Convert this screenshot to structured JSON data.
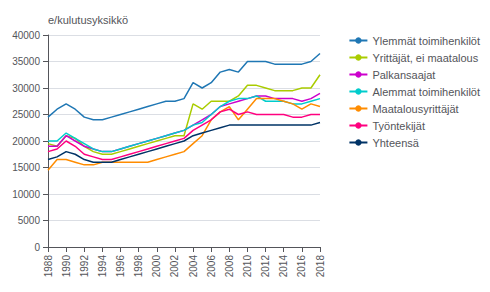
{
  "chart_data": {
    "type": "line",
    "ylabel": "e/kulutusyksikkö",
    "x": [
      1988,
      1989,
      1990,
      1991,
      1992,
      1993,
      1994,
      1995,
      1996,
      1997,
      1998,
      1999,
      2000,
      2001,
      2002,
      2003,
      2004,
      2005,
      2006,
      2007,
      2008,
      2009,
      2010,
      2011,
      2012,
      2013,
      2014,
      2015,
      2016,
      2017,
      2018
    ],
    "series": [
      {
        "name": "Ylemmät toimihenkilöt",
        "color": "#1F77B4",
        "values": [
          24500,
          26000,
          27000,
          26000,
          24500,
          24000,
          24000,
          24500,
          25000,
          25500,
          26000,
          26500,
          27000,
          27500,
          27500,
          28000,
          31000,
          30000,
          31000,
          33000,
          33500,
          33000,
          35000,
          35000,
          35000,
          34500,
          34500,
          34500,
          34500,
          35000,
          36500
        ]
      },
      {
        "name": "Yrittäjät, ei maatalous",
        "color": "#AACC00",
        "values": [
          19500,
          19000,
          21000,
          20500,
          19000,
          18000,
          17500,
          17500,
          18000,
          18500,
          19000,
          19500,
          20000,
          20500,
          21000,
          21000,
          27000,
          26000,
          27500,
          27500,
          27500,
          28500,
          30500,
          30500,
          30000,
          29500,
          29500,
          29500,
          30000,
          30000,
          32500
        ]
      },
      {
        "name": "Palkansaajat",
        "color": "#CC00CC",
        "values": [
          19000,
          19000,
          21000,
          20000,
          19000,
          18500,
          18000,
          18000,
          18500,
          19000,
          19500,
          20000,
          20500,
          21000,
          21500,
          22000,
          23000,
          24000,
          25000,
          26500,
          27000,
          27500,
          28000,
          28500,
          28500,
          28000,
          28000,
          28000,
          27500,
          28000,
          29000
        ]
      },
      {
        "name": "Alemmat toimihenkilöt",
        "color": "#00CCCC",
        "values": [
          20000,
          20000,
          21500,
          20500,
          19500,
          18500,
          18000,
          18000,
          18500,
          19000,
          19500,
          20000,
          20500,
          21000,
          21500,
          22000,
          23000,
          23500,
          25000,
          26500,
          27500,
          28000,
          28000,
          28500,
          27500,
          27500,
          27500,
          27000,
          27000,
          27500,
          28000
        ]
      },
      {
        "name": "Maatalousyrittäjät",
        "color": "#FF8C00",
        "values": [
          14500,
          16500,
          16500,
          16000,
          15500,
          15500,
          16000,
          16000,
          16000,
          16000,
          16000,
          16000,
          16500,
          17000,
          17500,
          18000,
          19500,
          21000,
          24000,
          25500,
          26500,
          24000,
          26000,
          28000,
          28000,
          28000,
          27500,
          27000,
          26000,
          27000,
          26500
        ]
      },
      {
        "name": "Työntekijät",
        "color": "#FF007F",
        "values": [
          18000,
          18500,
          20000,
          19000,
          17500,
          17000,
          16500,
          16500,
          17000,
          17500,
          18000,
          18500,
          19000,
          19500,
          20000,
          20500,
          22000,
          23000,
          24000,
          25500,
          26000,
          25000,
          25500,
          25000,
          25000,
          25000,
          25000,
          24500,
          24500,
          25000,
          25000
        ]
      },
      {
        "name": "Yhteensä",
        "color": "#003366",
        "values": [
          16500,
          17000,
          18000,
          17500,
          16500,
          16000,
          16000,
          16000,
          16500,
          17000,
          17500,
          18000,
          18500,
          19000,
          19500,
          20000,
          21000,
          21500,
          22000,
          22500,
          23000,
          23000,
          23000,
          23000,
          23000,
          23000,
          23000,
          23000,
          23000,
          23000,
          23500
        ]
      }
    ],
    "xlim": [
      1988,
      2018
    ],
    "xticks": [
      1988,
      1990,
      1992,
      1994,
      1996,
      1998,
      2000,
      2002,
      2004,
      2006,
      2008,
      2010,
      2012,
      2014,
      2016,
      2018
    ],
    "ylim": [
      0,
      40000
    ],
    "yticks": [
      0,
      5000,
      10000,
      15000,
      20000,
      25000,
      30000,
      35000,
      40000
    ],
    "grid": true,
    "legend": "right"
  }
}
